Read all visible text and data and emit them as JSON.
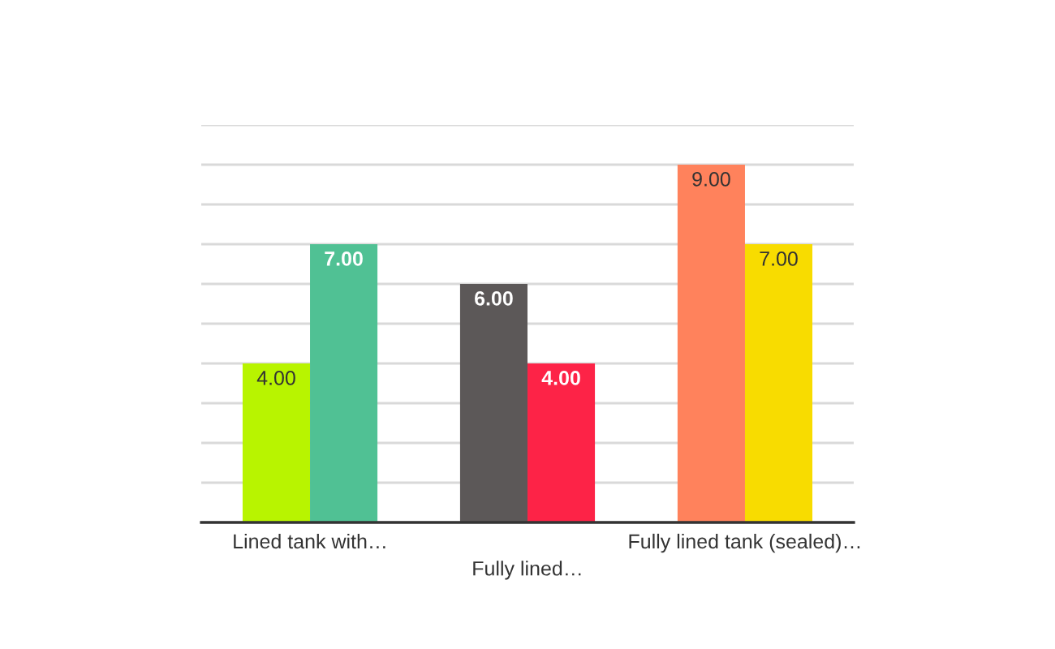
{
  "chart_data": {
    "type": "bar",
    "categories": [
      "Lined tank with…",
      "Fully lined…",
      "Fully lined tank (sealed)…"
    ],
    "series": [
      {
        "colors": [
          "#b8f400",
          "#5c5858",
          "#ff825c"
        ],
        "values": [
          4,
          6,
          9
        ],
        "value_labels": [
          "4.00",
          "6.00",
          "9.00"
        ]
      },
      {
        "colors": [
          "#50c194",
          "#fd2347",
          "#f8dc00"
        ],
        "values": [
          7,
          4,
          7
        ],
        "value_labels": [
          "7.00",
          "4.00",
          "7.00"
        ]
      }
    ],
    "ylim": [
      0,
      10
    ],
    "yticks": [
      {
        "value": 0,
        "label": null
      },
      {
        "value": 1,
        "label": null
      },
      {
        "value": 2,
        "label": null
      },
      {
        "value": 3,
        "label": null
      },
      {
        "value": 4,
        "label": null
      },
      {
        "value": 5,
        "label": null
      },
      {
        "value": 6,
        "label": null
      },
      {
        "value": 7,
        "label": null
      },
      {
        "value": 8,
        "label": null
      },
      {
        "value": 9,
        "label": null
      },
      {
        "value": 10,
        "label": null
      }
    ],
    "grid": "y",
    "tick_labels": "x"
  }
}
